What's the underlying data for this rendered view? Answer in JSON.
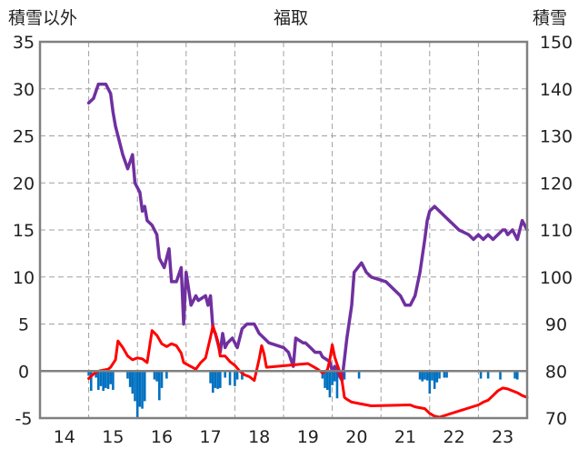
{
  "chart_data": {
    "type": "line",
    "title": "福取",
    "left_axis_label": "積雪以外",
    "right_axis_label": "積雪",
    "left_ylim": [
      -5,
      35
    ],
    "left_yticks": [
      "-5",
      "0",
      "5",
      "10",
      "15",
      "20",
      "25",
      "30",
      "35"
    ],
    "right_ylim": [
      70,
      150
    ],
    "right_yticks": [
      "70",
      "80",
      "90",
      "100",
      "110",
      "120",
      "130",
      "140",
      "150"
    ],
    "xlim": [
      13.5,
      23.5
    ],
    "xticks": [
      "14",
      "15",
      "16",
      "17",
      "18",
      "19",
      "20",
      "21",
      "22",
      "23"
    ],
    "grid": true,
    "colors": {
      "snow_depth": "#7030a0",
      "temperature": "#ff0000",
      "precipitation": "#0070c0",
      "axis": "#808080",
      "grid": "#a0a0a0"
    },
    "series": [
      {
        "key": "snow_depth",
        "axis": "right",
        "style": "line",
        "points": [
          [
            14.5,
            137
          ],
          [
            14.6,
            138
          ],
          [
            14.7,
            141
          ],
          [
            14.85,
            141
          ],
          [
            14.95,
            139
          ],
          [
            15.0,
            135
          ],
          [
            15.05,
            132
          ],
          [
            15.1,
            130
          ],
          [
            15.2,
            126
          ],
          [
            15.3,
            123
          ],
          [
            15.4,
            126
          ],
          [
            15.45,
            120
          ],
          [
            15.55,
            118
          ],
          [
            15.6,
            114
          ],
          [
            15.65,
            115
          ],
          [
            15.7,
            112
          ],
          [
            15.8,
            111
          ],
          [
            15.9,
            109
          ],
          [
            15.95,
            104
          ],
          [
            16.05,
            102
          ],
          [
            16.15,
            106
          ],
          [
            16.2,
            99
          ],
          [
            16.3,
            99
          ],
          [
            16.4,
            102
          ],
          [
            16.45,
            90
          ],
          [
            16.5,
            101
          ],
          [
            16.6,
            94
          ],
          [
            16.7,
            96
          ],
          [
            16.75,
            95
          ],
          [
            16.9,
            96
          ],
          [
            16.95,
            94
          ],
          [
            17.0,
            96
          ],
          [
            17.05,
            89
          ],
          [
            17.1,
            88
          ],
          [
            17.2,
            84
          ],
          [
            17.25,
            88
          ],
          [
            17.3,
            85
          ],
          [
            17.35,
            86
          ],
          [
            17.45,
            87
          ],
          [
            17.55,
            85
          ],
          [
            17.65,
            89
          ],
          [
            17.75,
            90
          ],
          [
            17.9,
            90
          ],
          [
            18.0,
            88
          ],
          [
            18.1,
            87
          ],
          [
            18.2,
            86
          ],
          [
            18.5,
            85
          ],
          [
            18.6,
            84
          ],
          [
            18.7,
            81
          ],
          [
            18.75,
            87
          ],
          [
            18.9,
            86
          ],
          [
            18.95,
            86
          ],
          [
            19.05,
            85
          ],
          [
            19.15,
            84
          ],
          [
            19.25,
            84
          ],
          [
            19.3,
            83
          ],
          [
            19.45,
            82
          ],
          [
            19.5,
            80
          ],
          [
            19.55,
            81
          ],
          [
            19.65,
            79
          ],
          [
            19.7,
            78
          ],
          [
            19.8,
            87
          ],
          [
            19.9,
            94
          ],
          [
            19.95,
            101
          ],
          [
            20.1,
            103
          ],
          [
            20.2,
            101
          ],
          [
            20.3,
            100
          ],
          [
            20.6,
            99
          ],
          [
            20.8,
            97
          ],
          [
            20.9,
            96
          ],
          [
            21.0,
            94
          ],
          [
            21.1,
            94
          ],
          [
            21.2,
            96
          ],
          [
            21.3,
            101
          ],
          [
            21.4,
            108
          ],
          [
            21.45,
            112
          ],
          [
            21.5,
            114
          ],
          [
            21.6,
            115
          ],
          [
            21.7,
            114
          ],
          [
            21.8,
            113
          ],
          [
            21.9,
            112
          ],
          [
            22.0,
            111
          ],
          [
            22.1,
            110
          ],
          [
            22.3,
            109
          ],
          [
            22.4,
            108
          ],
          [
            22.5,
            109
          ],
          [
            22.6,
            108
          ],
          [
            22.7,
            109
          ],
          [
            22.8,
            108
          ],
          [
            22.9,
            109
          ],
          [
            23.0,
            110
          ],
          [
            23.05,
            110
          ],
          [
            23.1,
            109
          ],
          [
            23.2,
            110
          ],
          [
            23.25,
            109
          ],
          [
            23.3,
            108
          ],
          [
            23.4,
            112
          ],
          [
            23.45,
            111
          ],
          [
            23.5,
            110
          ]
        ]
      },
      {
        "key": "temperature",
        "axis": "left",
        "style": "line",
        "points": [
          [
            14.5,
            -0.8
          ],
          [
            14.6,
            -0.3
          ],
          [
            14.7,
            0
          ],
          [
            14.8,
            0.1
          ],
          [
            14.9,
            0.2
          ],
          [
            14.95,
            0.4
          ],
          [
            15.05,
            1.2
          ],
          [
            15.1,
            3.2
          ],
          [
            15.2,
            2.5
          ],
          [
            15.3,
            1.6
          ],
          [
            15.4,
            1.2
          ],
          [
            15.5,
            1.4
          ],
          [
            15.6,
            1.3
          ],
          [
            15.7,
            0.9
          ],
          [
            15.8,
            4.3
          ],
          [
            15.9,
            3.8
          ],
          [
            16.0,
            2.9
          ],
          [
            16.1,
            2.6
          ],
          [
            16.2,
            2.9
          ],
          [
            16.3,
            2.7
          ],
          [
            16.4,
            1.9
          ],
          [
            16.45,
            0.9
          ],
          [
            16.7,
            0.2
          ],
          [
            16.8,
            0.9
          ],
          [
            16.9,
            1.4
          ],
          [
            17.0,
            3.6
          ],
          [
            17.05,
            4.8
          ],
          [
            17.15,
            3.2
          ],
          [
            17.2,
            1.6
          ],
          [
            17.3,
            1.6
          ],
          [
            17.4,
            1.0
          ],
          [
            17.5,
            0.6
          ],
          [
            17.6,
            0
          ],
          [
            17.7,
            -0.4
          ],
          [
            17.8,
            -0.6
          ],
          [
            17.9,
            -1.0
          ],
          [
            18.0,
            1.3
          ],
          [
            18.05,
            2.7
          ],
          [
            18.1,
            1.8
          ],
          [
            18.15,
            0.4
          ],
          [
            19.0,
            0.8
          ],
          [
            19.1,
            0.5
          ],
          [
            19.2,
            0.2
          ],
          [
            19.3,
            -0.2
          ],
          [
            19.4,
            0.1
          ],
          [
            19.45,
            1.2
          ],
          [
            19.5,
            2.8
          ],
          [
            19.55,
            1.5
          ],
          [
            19.6,
            0.7
          ],
          [
            19.65,
            0
          ],
          [
            19.7,
            -1.0
          ],
          [
            19.75,
            -2.8
          ],
          [
            19.8,
            -3.0
          ],
          [
            19.9,
            -3.3
          ],
          [
            20.1,
            -3.5
          ],
          [
            20.3,
            -3.7
          ],
          [
            21.1,
            -3.6
          ],
          [
            21.2,
            -3.8
          ],
          [
            21.3,
            -3.9
          ],
          [
            21.4,
            -4.0
          ],
          [
            21.5,
            -4.5
          ],
          [
            21.6,
            -4.8
          ],
          [
            21.7,
            -4.9
          ],
          [
            22.5,
            -3.6
          ],
          [
            22.6,
            -3.3
          ],
          [
            22.7,
            -3.1
          ],
          [
            22.8,
            -2.6
          ],
          [
            22.9,
            -2.1
          ],
          [
            23.0,
            -1.8
          ],
          [
            23.1,
            -1.9
          ],
          [
            23.2,
            -2.1
          ],
          [
            23.3,
            -2.3
          ],
          [
            23.4,
            -2.6
          ],
          [
            23.5,
            -2.8
          ]
        ]
      },
      {
        "key": "precipitation",
        "axis": "left",
        "style": "bar",
        "points": [
          [
            14.5,
            -0.5
          ],
          [
            14.55,
            -2.1
          ],
          [
            14.65,
            -0.7
          ],
          [
            14.7,
            -2.0
          ],
          [
            14.75,
            -1.6
          ],
          [
            14.8,
            -2.1
          ],
          [
            14.85,
            -1.8
          ],
          [
            14.9,
            -1.9
          ],
          [
            14.95,
            -1.4
          ],
          [
            15.0,
            -2.0
          ],
          [
            15.3,
            -0.8
          ],
          [
            15.35,
            -1.7
          ],
          [
            15.4,
            -2.4
          ],
          [
            15.45,
            -3.2
          ],
          [
            15.5,
            -5.0
          ],
          [
            15.55,
            -3.8
          ],
          [
            15.6,
            -4.0
          ],
          [
            15.65,
            -3.2
          ],
          [
            15.85,
            -0.9
          ],
          [
            15.9,
            -1.1
          ],
          [
            15.95,
            -3.1
          ],
          [
            16.0,
            -1.8
          ],
          [
            16.1,
            -0.8
          ],
          [
            17.0,
            -1.3
          ],
          [
            17.05,
            -2.3
          ],
          [
            17.1,
            -1.8
          ],
          [
            17.15,
            -1.9
          ],
          [
            17.2,
            -1.8
          ],
          [
            17.3,
            -0.7
          ],
          [
            17.4,
            -1.5
          ],
          [
            17.5,
            -1.6
          ],
          [
            17.55,
            -0.9
          ],
          [
            17.65,
            -0.9
          ],
          [
            19.3,
            -0.8
          ],
          [
            19.35,
            -1.8
          ],
          [
            19.4,
            -2.0
          ],
          [
            19.45,
            -2.8
          ],
          [
            19.5,
            -1.5
          ],
          [
            19.55,
            -1.1
          ],
          [
            19.6,
            -2.9
          ],
          [
            19.65,
            -0.7
          ],
          [
            19.7,
            -1.2
          ],
          [
            19.75,
            -0.9
          ],
          [
            20.05,
            -0.8
          ],
          [
            21.3,
            -0.9
          ],
          [
            21.35,
            -1.1
          ],
          [
            21.4,
            -0.9
          ],
          [
            21.45,
            -1.0
          ],
          [
            21.5,
            -2.4
          ],
          [
            21.55,
            -1.0
          ],
          [
            21.6,
            -1.9
          ],
          [
            21.65,
            -1.2
          ],
          [
            21.7,
            -0.8
          ],
          [
            21.8,
            -0.7
          ],
          [
            21.85,
            -0.7
          ],
          [
            22.55,
            -0.8
          ],
          [
            22.7,
            -0.8
          ],
          [
            22.95,
            -0.9
          ],
          [
            23.25,
            -0.8
          ],
          [
            23.3,
            -0.9
          ]
        ]
      }
    ]
  }
}
